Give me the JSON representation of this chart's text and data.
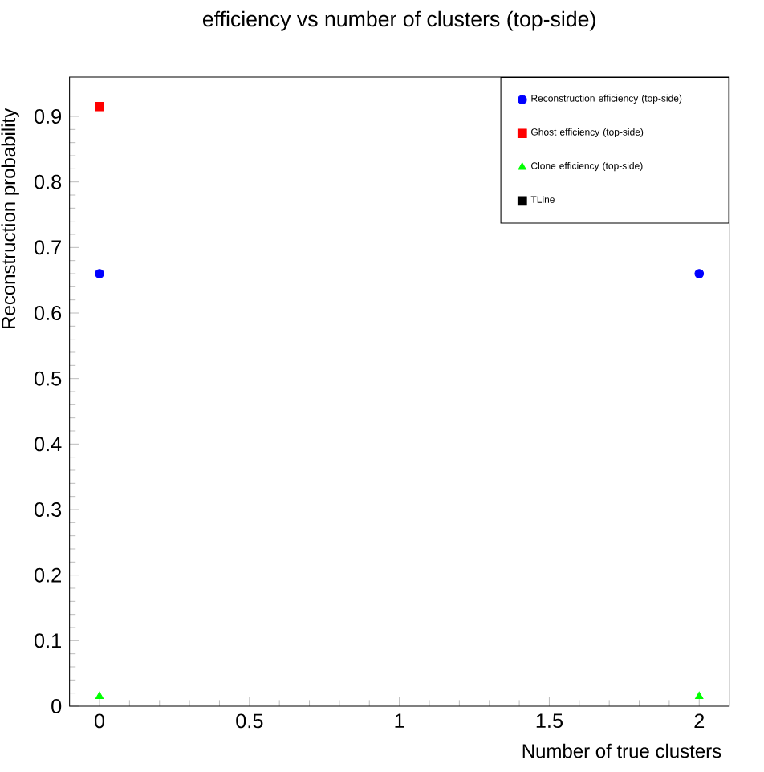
{
  "chart_data": {
    "type": "scatter",
    "title": "efficiency vs number of clusters (top-side)",
    "xlabel": "Number of true clusters",
    "ylabel": "Reconstruction probability",
    "x": [
      0,
      2
    ],
    "xlim": [
      -0.1,
      2.1
    ],
    "ylim": [
      0,
      0.96
    ],
    "xticks": [
      0,
      0.5,
      1,
      1.5,
      2
    ],
    "yticks": [
      0,
      0.1,
      0.2,
      0.3,
      0.4,
      0.5,
      0.6,
      0.7,
      0.8,
      0.9
    ],
    "grid": false,
    "legend": "top right",
    "series": [
      {
        "name": "Reconstruction efficiency (top-side)",
        "color": "#0000ff",
        "marker": "circle",
        "values": [
          0.66,
          0.66
        ]
      },
      {
        "name": "Ghost efficiency (top-side)",
        "color": "#ff0000",
        "marker": "square",
        "values": [
          0.915,
          null
        ]
      },
      {
        "name": "Clone efficiency (top-side)",
        "color": "#00ff00",
        "marker": "triangle",
        "values": [
          0.015,
          0.015
        ]
      },
      {
        "name": "TLine",
        "color": "#000000",
        "marker": "square",
        "values": [
          null,
          null
        ]
      }
    ]
  }
}
